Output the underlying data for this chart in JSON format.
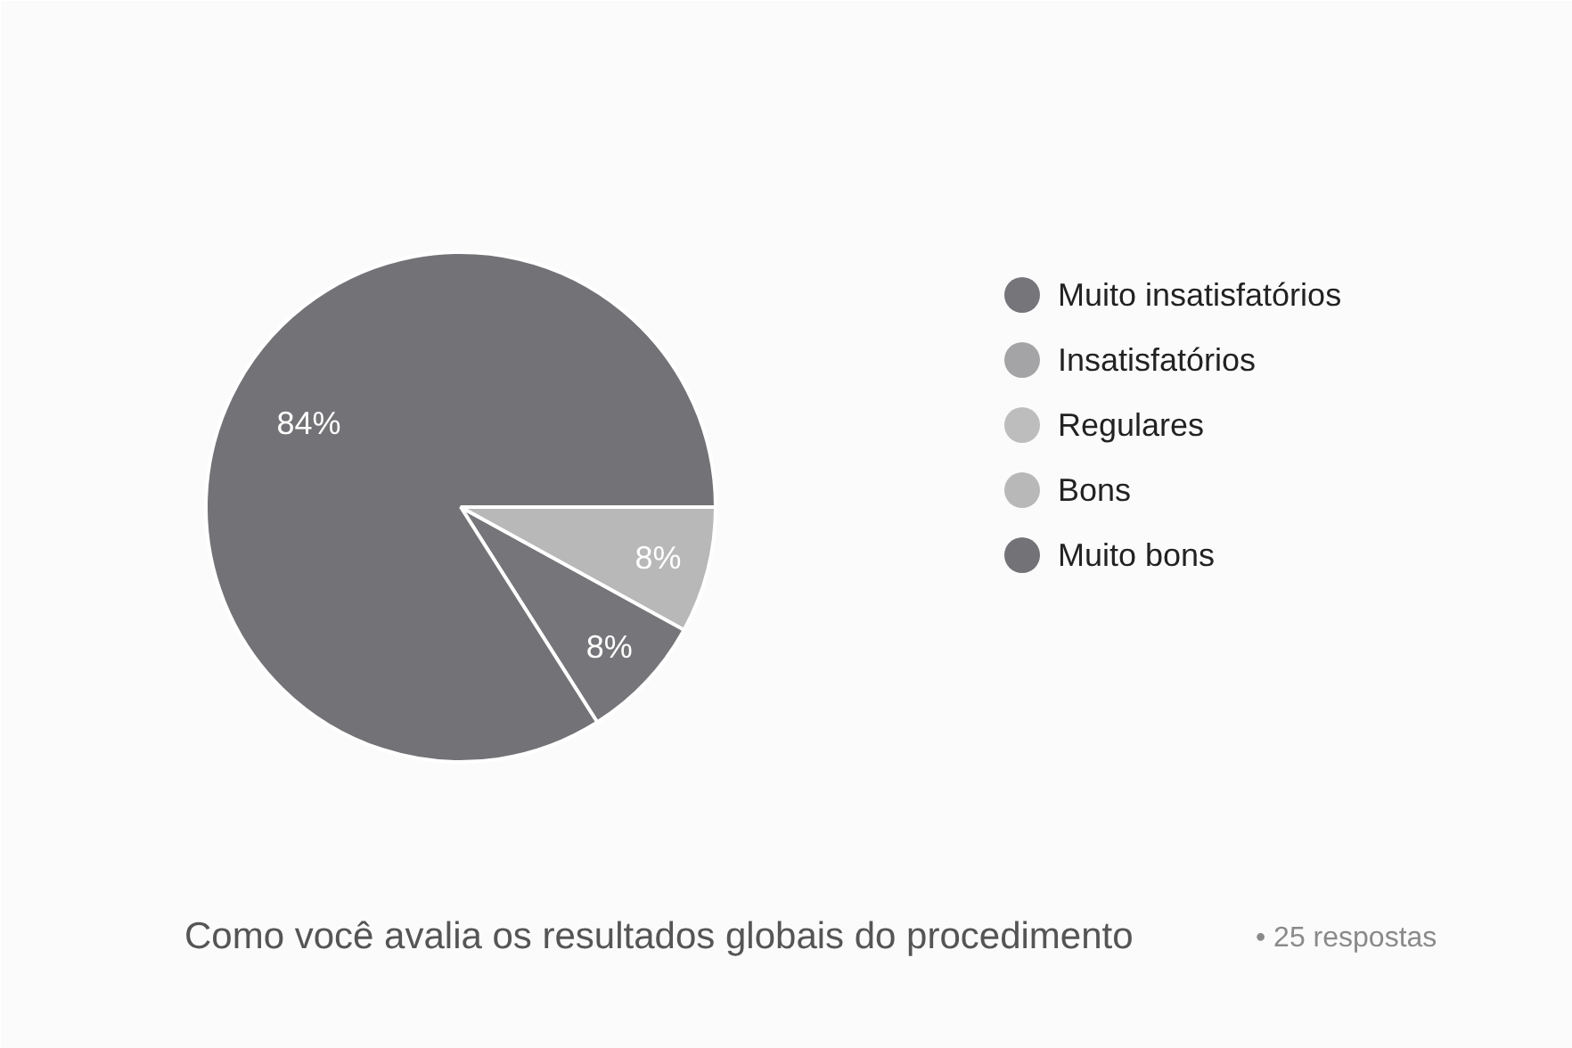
{
  "chart_data": {
    "type": "pie",
    "title": "Como você avalia os resultados globais do procedimento",
    "subtitle": "• 25 respostas",
    "categories": [
      "Muito insatisfatórios",
      "Insatisfatórios",
      "Regulares",
      "Bons",
      "Muito bons"
    ],
    "values": [
      8,
      0,
      0,
      8,
      84
    ],
    "colors": [
      "#76767a",
      "#a4a4a6",
      "#bdbdbe",
      "#b8b8b9",
      "#737377"
    ],
    "value_labels": [
      "8%",
      null,
      null,
      "8%",
      "84%"
    ],
    "legend": "right"
  }
}
